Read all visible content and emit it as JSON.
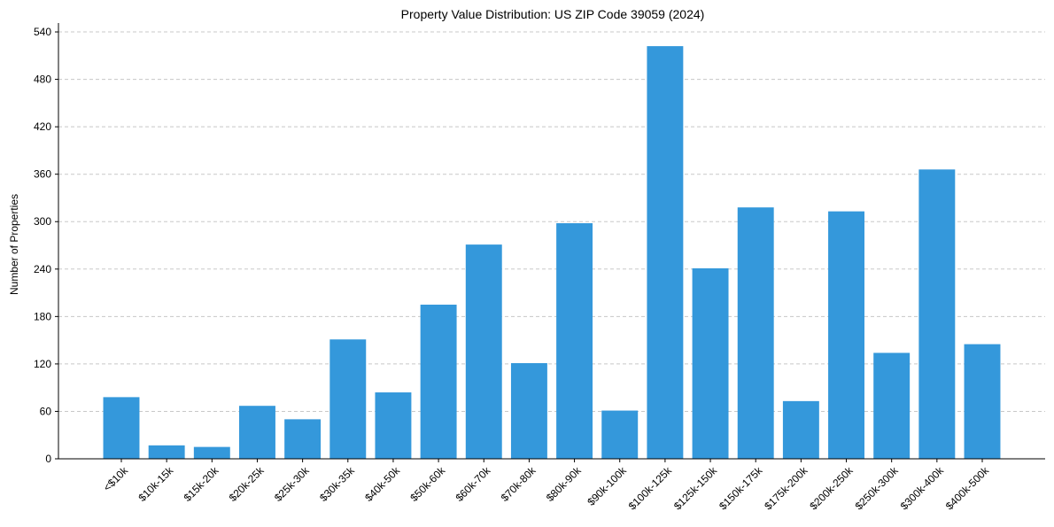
{
  "chart_data": {
    "type": "bar",
    "title": "Property Value Distribution: US ZIP Code 39059 (2024)",
    "xlabel": "",
    "ylabel": "Number of Properties",
    "categories": [
      "<$10k",
      "$10k-15k",
      "$15k-20k",
      "$20k-25k",
      "$25k-30k",
      "$30k-35k",
      "$40k-50k",
      "$50k-60k",
      "$60k-70k",
      "$70k-80k",
      "$80k-90k",
      "$90k-100k",
      "$100k-125k",
      "$125k-150k",
      "$150k-175k",
      "$175k-200k",
      "$200k-250k",
      "$250k-300k",
      "$300k-400k",
      "$400k-500k"
    ],
    "values": [
      78,
      17,
      15,
      67,
      50,
      151,
      84,
      195,
      271,
      121,
      298,
      61,
      522,
      241,
      318,
      73,
      313,
      134,
      366,
      145
    ],
    "yticks": [
      0,
      60,
      120,
      180,
      240,
      300,
      360,
      420,
      480,
      540
    ],
    "ylim": [
      0,
      549
    ],
    "grid": "y-dashed",
    "bar_color": "#3498db",
    "grid_color": "#c8c8c8"
  }
}
